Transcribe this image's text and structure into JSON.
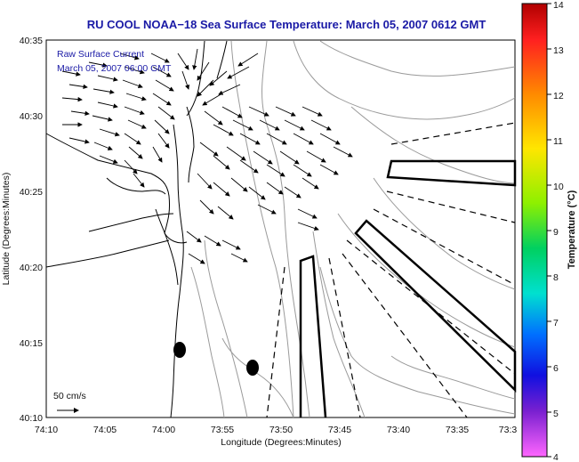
{
  "title": "RU COOL  NOAA−18  Sea Surface Temperature:  March 05, 2007 0612 GMT",
  "legend": {
    "line1": "Raw Surface Current",
    "line2": "March 05, 2007 06:00 GMT",
    "scale_label": "50 cm/s"
  },
  "axes": {
    "xlabel": "Longitude (Degrees:Minutes)",
    "ylabel": "Latitude (Degrees:Minutes)",
    "x_ticks": [
      "74:10",
      "74:05",
      "74:00",
      "73:55",
      "73:50",
      "73:45",
      "73:40",
      "73:35",
      "73:3"
    ],
    "y_ticks": [
      "40:35",
      "40:30",
      "40:25",
      "40:20",
      "40:15",
      "40:10"
    ]
  },
  "colorbar": {
    "label": "Temperature (°C)",
    "ticks": [
      "14",
      "13",
      "12",
      "11",
      "10",
      "9",
      "8",
      "7",
      "6",
      "5",
      "4"
    ],
    "min": 4,
    "max": 14,
    "colors": [
      "#ff2a2a",
      "#ff8a00",
      "#ffe600",
      "#b6f000",
      "#22dd22",
      "#00e6a0",
      "#00b0ff",
      "#0030ff",
      "#6a00d0",
      "#ff66ff"
    ]
  },
  "colors": {
    "title": "#1a1aa6",
    "contour": "#9a9a9a",
    "arrow": "#000000"
  },
  "icons": [
    "black-marker-icon",
    "scale-arrow-icon"
  ]
}
